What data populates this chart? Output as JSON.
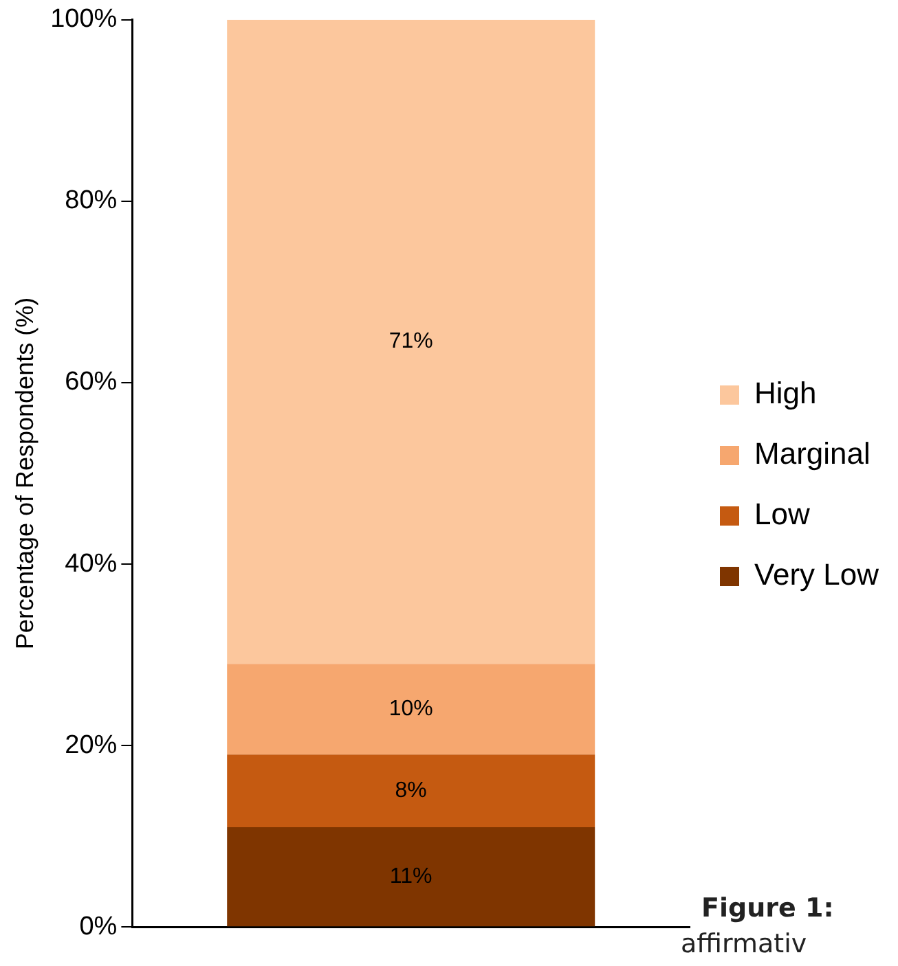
{
  "chart_data": {
    "type": "bar",
    "stacked": true,
    "ylabel": "Percentage of Respondents (%)",
    "categories": [
      null
    ],
    "series": [
      {
        "name": "Very Low",
        "color": "#7f3500",
        "values": [
          11
        ],
        "value_labels": [
          "11%"
        ]
      },
      {
        "name": "Low",
        "color": "#c55a11",
        "values": [
          8
        ],
        "value_labels": [
          "8%"
        ]
      },
      {
        "name": "Marginal",
        "color": "#f6a76f",
        "values": [
          10
        ],
        "value_labels": [
          "10%"
        ]
      },
      {
        "name": "High",
        "color": "#fcc79d",
        "values": [
          71
        ],
        "value_labels": [
          "71%"
        ]
      }
    ],
    "ylim": [
      0,
      100
    ],
    "yticks": [
      {
        "value": 0,
        "label": "0%"
      },
      {
        "value": 20,
        "label": "20%"
      },
      {
        "value": 40,
        "label": "40%"
      },
      {
        "value": 60,
        "label": "60%"
      },
      {
        "value": 80,
        "label": "80%"
      },
      {
        "value": 100,
        "label": "100%"
      }
    ],
    "grid": false,
    "legend": "right",
    "annotations": [
      "Figure 1:",
      "affirmativ"
    ]
  }
}
